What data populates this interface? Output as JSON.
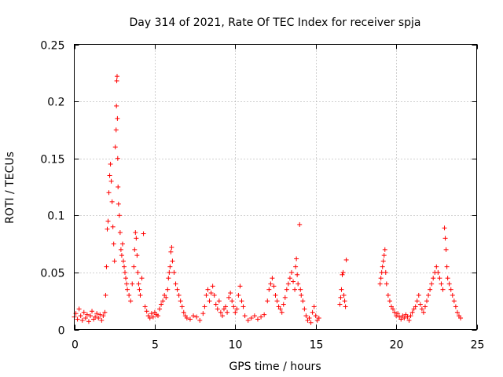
{
  "chart_data": {
    "type": "scatter",
    "title": "Day 314 of 2021, Rate Of TEC Index for receiver spja",
    "xlabel": "GPS time / hours",
    "ylabel": "ROTI / TECUs",
    "xlim": [
      0,
      25
    ],
    "ylim": [
      0,
      0.25
    ],
    "x_ticks": [
      0,
      5,
      10,
      15,
      20,
      25
    ],
    "x_tick_labels": [
      "0",
      "5",
      "10",
      "15",
      "20",
      "25"
    ],
    "y_ticks": [
      0,
      0.05,
      0.1,
      0.15,
      0.2,
      0.25
    ],
    "y_tick_labels": [
      "0",
      "0.05",
      "0.1",
      "0.15",
      "0.2",
      "0.25"
    ],
    "grid": true,
    "marker": "+",
    "color": "#ff0000",
    "series": [
      {
        "name": "ROTI",
        "points": [
          [
            0.0,
            0.011
          ],
          [
            0.1,
            0.014
          ],
          [
            0.2,
            0.009
          ],
          [
            0.3,
            0.018
          ],
          [
            0.4,
            0.012
          ],
          [
            0.5,
            0.008
          ],
          [
            0.6,
            0.015
          ],
          [
            0.7,
            0.01
          ],
          [
            0.8,
            0.013
          ],
          [
            0.9,
            0.007
          ],
          [
            1.0,
            0.012
          ],
          [
            1.1,
            0.016
          ],
          [
            1.2,
            0.009
          ],
          [
            1.3,
            0.011
          ],
          [
            1.4,
            0.014
          ],
          [
            1.5,
            0.01
          ],
          [
            1.6,
            0.013
          ],
          [
            1.7,
            0.008
          ],
          [
            1.8,
            0.012
          ],
          [
            1.9,
            0.015
          ],
          [
            1.95,
            0.03
          ],
          [
            2.0,
            0.055
          ],
          [
            2.05,
            0.088
          ],
          [
            2.1,
            0.095
          ],
          [
            2.15,
            0.12
          ],
          [
            2.2,
            0.135
          ],
          [
            2.25,
            0.145
          ],
          [
            2.3,
            0.13
          ],
          [
            2.35,
            0.112
          ],
          [
            2.4,
            0.09
          ],
          [
            2.45,
            0.075
          ],
          [
            2.5,
            0.06
          ],
          [
            2.55,
            0.16
          ],
          [
            2.6,
            0.175
          ],
          [
            2.62,
            0.196
          ],
          [
            2.64,
            0.218
          ],
          [
            2.66,
            0.222
          ],
          [
            2.68,
            0.185
          ],
          [
            2.7,
            0.15
          ],
          [
            2.72,
            0.125
          ],
          [
            2.75,
            0.11
          ],
          [
            2.8,
            0.1
          ],
          [
            2.85,
            0.085
          ],
          [
            2.9,
            0.07
          ],
          [
            2.95,
            0.065
          ],
          [
            3.0,
            0.075
          ],
          [
            3.05,
            0.06
          ],
          [
            3.1,
            0.055
          ],
          [
            3.15,
            0.05
          ],
          [
            3.2,
            0.045
          ],
          [
            3.25,
            0.04
          ],
          [
            3.3,
            0.035
          ],
          [
            3.4,
            0.03
          ],
          [
            3.5,
            0.025
          ],
          [
            3.6,
            0.04
          ],
          [
            3.7,
            0.055
          ],
          [
            3.75,
            0.07
          ],
          [
            3.8,
            0.085
          ],
          [
            3.85,
            0.08
          ],
          [
            3.9,
            0.065
          ],
          [
            3.95,
            0.05
          ],
          [
            4.0,
            0.04
          ],
          [
            4.05,
            0.035
          ],
          [
            4.1,
            0.03
          ],
          [
            4.2,
            0.045
          ],
          [
            4.3,
            0.084
          ],
          [
            4.4,
            0.02
          ],
          [
            4.5,
            0.016
          ],
          [
            4.6,
            0.012
          ],
          [
            4.7,
            0.01
          ],
          [
            4.8,
            0.014
          ],
          [
            4.9,
            0.011
          ],
          [
            5.0,
            0.015
          ],
          [
            5.1,
            0.013
          ],
          [
            5.2,
            0.012
          ],
          [
            5.3,
            0.018
          ],
          [
            5.4,
            0.022
          ],
          [
            5.5,
            0.025
          ],
          [
            5.6,
            0.03
          ],
          [
            5.7,
            0.028
          ],
          [
            5.8,
            0.035
          ],
          [
            5.85,
            0.045
          ],
          [
            5.9,
            0.05
          ],
          [
            5.95,
            0.055
          ],
          [
            6.0,
            0.068
          ],
          [
            6.05,
            0.072
          ],
          [
            6.1,
            0.06
          ],
          [
            6.2,
            0.05
          ],
          [
            6.3,
            0.04
          ],
          [
            6.4,
            0.035
          ],
          [
            6.5,
            0.03
          ],
          [
            6.6,
            0.025
          ],
          [
            6.7,
            0.02
          ],
          [
            6.8,
            0.015
          ],
          [
            6.9,
            0.012
          ],
          [
            7.0,
            0.01
          ],
          [
            7.2,
            0.009
          ],
          [
            7.4,
            0.012
          ],
          [
            7.6,
            0.011
          ],
          [
            7.8,
            0.008
          ],
          [
            8.0,
            0.014
          ],
          [
            8.1,
            0.02
          ],
          [
            8.2,
            0.03
          ],
          [
            8.3,
            0.035
          ],
          [
            8.4,
            0.025
          ],
          [
            8.5,
            0.032
          ],
          [
            8.6,
            0.038
          ],
          [
            8.7,
            0.03
          ],
          [
            8.8,
            0.022
          ],
          [
            8.9,
            0.018
          ],
          [
            9.0,
            0.025
          ],
          [
            9.1,
            0.015
          ],
          [
            9.2,
            0.012
          ],
          [
            9.3,
            0.018
          ],
          [
            9.4,
            0.02
          ],
          [
            9.5,
            0.015
          ],
          [
            9.6,
            0.028
          ],
          [
            9.7,
            0.032
          ],
          [
            9.8,
            0.025
          ],
          [
            9.9,
            0.02
          ],
          [
            10.0,
            0.015
          ],
          [
            10.1,
            0.018
          ],
          [
            10.2,
            0.03
          ],
          [
            10.3,
            0.038
          ],
          [
            10.4,
            0.025
          ],
          [
            10.5,
            0.02
          ],
          [
            10.6,
            0.012
          ],
          [
            10.8,
            0.008
          ],
          [
            11.0,
            0.01
          ],
          [
            11.2,
            0.012
          ],
          [
            11.4,
            0.009
          ],
          [
            11.6,
            0.011
          ],
          [
            11.8,
            0.013
          ],
          [
            12.0,
            0.025
          ],
          [
            12.1,
            0.035
          ],
          [
            12.2,
            0.04
          ],
          [
            12.3,
            0.045
          ],
          [
            12.4,
            0.038
          ],
          [
            12.5,
            0.03
          ],
          [
            12.6,
            0.025
          ],
          [
            12.7,
            0.02
          ],
          [
            12.8,
            0.018
          ],
          [
            12.9,
            0.015
          ],
          [
            13.0,
            0.022
          ],
          [
            13.1,
            0.028
          ],
          [
            13.2,
            0.035
          ],
          [
            13.3,
            0.04
          ],
          [
            13.4,
            0.045
          ],
          [
            13.5,
            0.05
          ],
          [
            13.6,
            0.042
          ],
          [
            13.7,
            0.035
          ],
          [
            13.75,
            0.055
          ],
          [
            13.8,
            0.062
          ],
          [
            13.85,
            0.048
          ],
          [
            13.9,
            0.04
          ],
          [
            14.0,
            0.092
          ],
          [
            14.05,
            0.035
          ],
          [
            14.1,
            0.03
          ],
          [
            14.2,
            0.025
          ],
          [
            14.3,
            0.018
          ],
          [
            14.4,
            0.012
          ],
          [
            14.5,
            0.008
          ],
          [
            14.6,
            0.01
          ],
          [
            14.7,
            0.006
          ],
          [
            14.8,
            0.015
          ],
          [
            14.9,
            0.02
          ],
          [
            15.0,
            0.012
          ],
          [
            15.1,
            0.008
          ],
          [
            15.2,
            0.01
          ],
          [
            16.5,
            0.022
          ],
          [
            16.55,
            0.028
          ],
          [
            16.6,
            0.035
          ],
          [
            16.65,
            0.048
          ],
          [
            16.7,
            0.05
          ],
          [
            16.75,
            0.03
          ],
          [
            16.8,
            0.025
          ],
          [
            16.85,
            0.02
          ],
          [
            16.9,
            0.061
          ],
          [
            19.0,
            0.04
          ],
          [
            19.05,
            0.045
          ],
          [
            19.1,
            0.05
          ],
          [
            19.15,
            0.055
          ],
          [
            19.2,
            0.06
          ],
          [
            19.25,
            0.065
          ],
          [
            19.3,
            0.07
          ],
          [
            19.35,
            0.05
          ],
          [
            19.4,
            0.04
          ],
          [
            19.5,
            0.03
          ],
          [
            19.6,
            0.025
          ],
          [
            19.7,
            0.02
          ],
          [
            19.8,
            0.018
          ],
          [
            19.9,
            0.015
          ],
          [
            20.0,
            0.012
          ],
          [
            20.1,
            0.014
          ],
          [
            20.2,
            0.011
          ],
          [
            20.3,
            0.009
          ],
          [
            20.4,
            0.012
          ],
          [
            20.5,
            0.01
          ],
          [
            20.6,
            0.013
          ],
          [
            20.7,
            0.011
          ],
          [
            20.8,
            0.008
          ],
          [
            20.9,
            0.012
          ],
          [
            21.0,
            0.015
          ],
          [
            21.1,
            0.018
          ],
          [
            21.2,
            0.02
          ],
          [
            21.3,
            0.025
          ],
          [
            21.4,
            0.03
          ],
          [
            21.5,
            0.022
          ],
          [
            21.6,
            0.018
          ],
          [
            21.7,
            0.015
          ],
          [
            21.8,
            0.02
          ],
          [
            21.9,
            0.025
          ],
          [
            22.0,
            0.03
          ],
          [
            22.1,
            0.035
          ],
          [
            22.2,
            0.04
          ],
          [
            22.3,
            0.045
          ],
          [
            22.4,
            0.05
          ],
          [
            22.5,
            0.055
          ],
          [
            22.6,
            0.05
          ],
          [
            22.7,
            0.045
          ],
          [
            22.8,
            0.04
          ],
          [
            22.9,
            0.035
          ],
          [
            23.0,
            0.089
          ],
          [
            23.05,
            0.08
          ],
          [
            23.1,
            0.07
          ],
          [
            23.15,
            0.055
          ],
          [
            23.2,
            0.045
          ],
          [
            23.3,
            0.04
          ],
          [
            23.4,
            0.035
          ],
          [
            23.5,
            0.03
          ],
          [
            23.6,
            0.025
          ],
          [
            23.7,
            0.02
          ],
          [
            23.8,
            0.015
          ],
          [
            23.9,
            0.012
          ],
          [
            24.0,
            0.01
          ]
        ]
      }
    ]
  }
}
